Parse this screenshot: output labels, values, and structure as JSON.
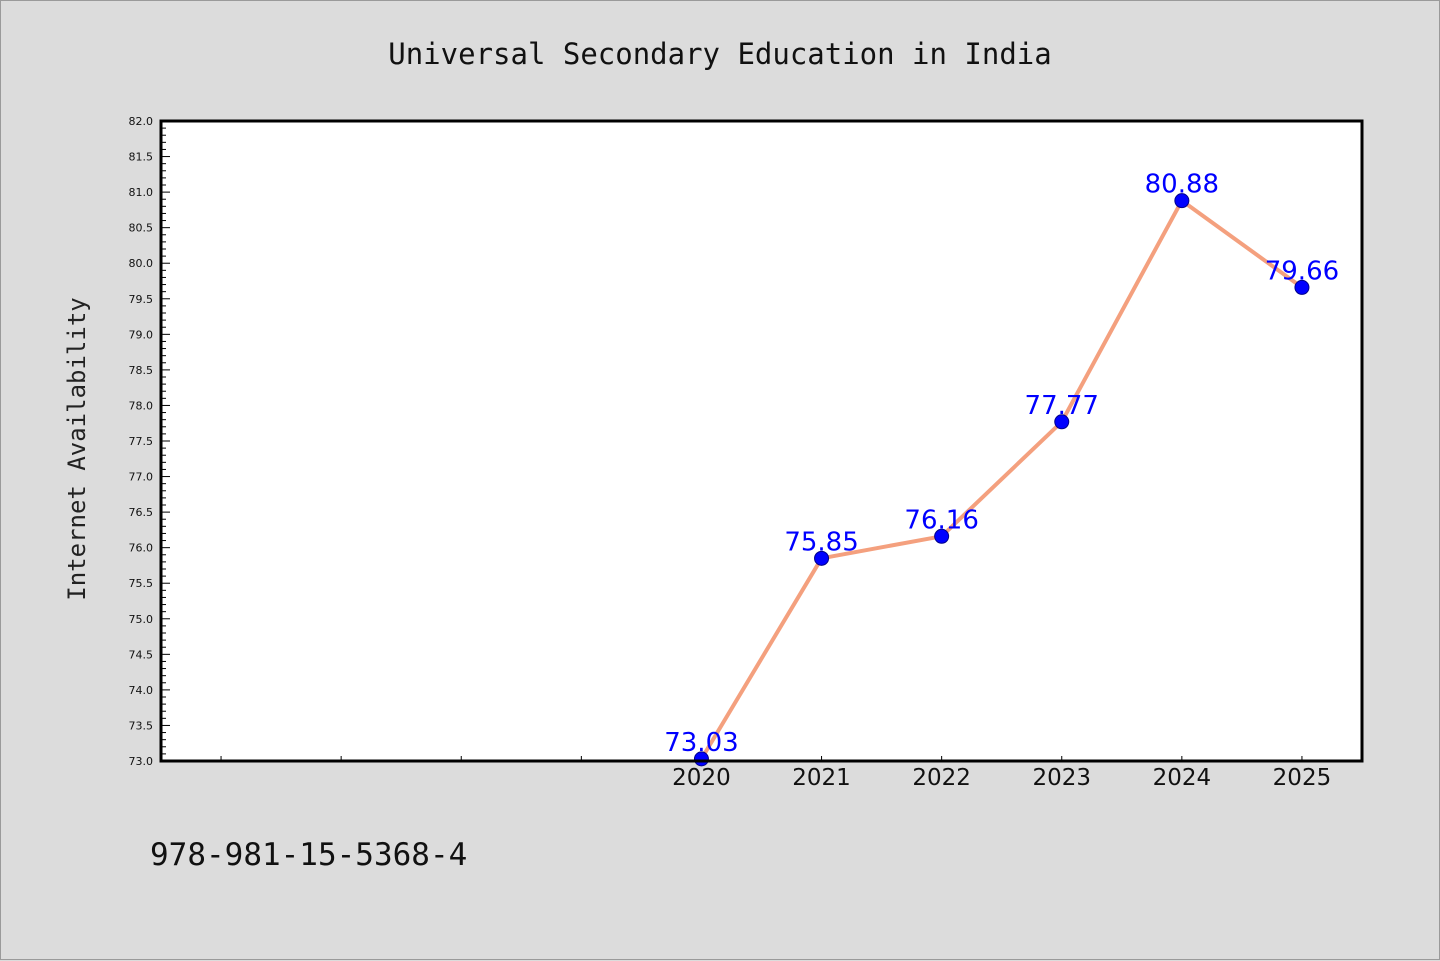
{
  "chart_data": {
    "type": "line",
    "title": "Universal Secondary Education in India",
    "ylabel": "Internet Availability",
    "xlabel": "",
    "x": [
      2020,
      2021,
      2022,
      2023,
      2024,
      2025
    ],
    "x_tick_labels": [
      "2020",
      "2021",
      "2022",
      "2023",
      "2024",
      "2025"
    ],
    "x_range": [
      2015.5,
      2025.5
    ],
    "unlabeled_x_ticks": [
      2016,
      2017,
      2018,
      2019
    ],
    "series": [
      {
        "values": [
          73.03,
          75.85,
          76.16,
          77.77,
          80.88,
          79.66
        ],
        "data_labels": [
          "73.03",
          "75.85",
          "76.16",
          "77.77",
          "80.88",
          "79.66"
        ]
      }
    ],
    "ylim": [
      73.0,
      82.0
    ],
    "y_ticks": [
      "73.0",
      "73.5",
      "74.0",
      "74.5",
      "75.0",
      "75.5",
      "76.0",
      "76.5",
      "77.0",
      "77.5",
      "78.0",
      "78.5",
      "79.0",
      "79.5",
      "80.0",
      "80.5",
      "81.0",
      "81.5",
      "82.0"
    ],
    "y_minor_step": 0.1,
    "grid": false,
    "legend": "none",
    "colors": {
      "line": "#f4a07e",
      "marker": "#0000ff",
      "data_label": "#0000ff",
      "background": "#dcdcdc",
      "plot_area": "#ffffff"
    }
  },
  "footer": {
    "isbn": "978-981-15-5368-4"
  }
}
